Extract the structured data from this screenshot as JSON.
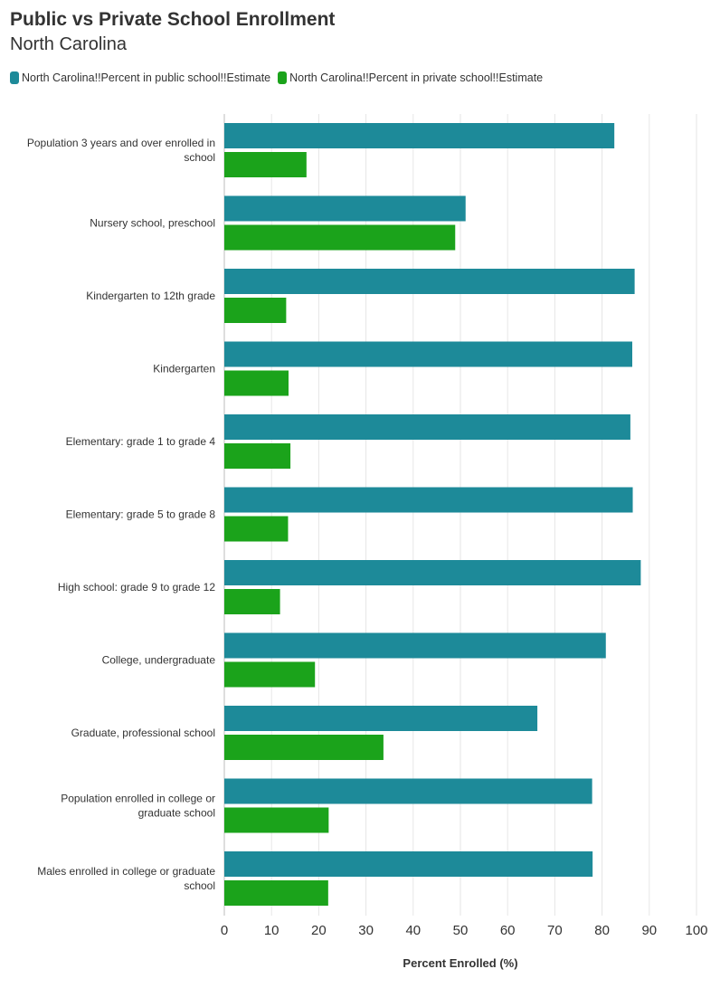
{
  "chart_data": {
    "type": "bar",
    "orientation": "horizontal",
    "title": "Public vs Private School Enrollment",
    "subtitle": "North Carolina",
    "xlabel": "Percent Enrolled (%)",
    "ylabel": "",
    "xlim": [
      0,
      100
    ],
    "xticks": [
      0,
      10,
      20,
      30,
      40,
      50,
      60,
      70,
      80,
      90,
      100
    ],
    "grid": true,
    "legend_position": "top-left",
    "categories": [
      [
        "Population 3 years and over enrolled in",
        "school"
      ],
      [
        "Nursery school, preschool"
      ],
      [
        "Kindergarten to 12th grade"
      ],
      [
        "Kindergarten"
      ],
      [
        "Elementary: grade 1 to grade 4"
      ],
      [
        "Elementary: grade 5 to grade 8"
      ],
      [
        "High school: grade 9 to grade 12"
      ],
      [
        "College, undergraduate"
      ],
      [
        "Graduate, professional school"
      ],
      [
        "Population enrolled in college or",
        "graduate school"
      ],
      [
        "Males enrolled in college or graduate",
        "school"
      ]
    ],
    "series": [
      {
        "name": "North Carolina!!Percent in public school!!Estimate",
        "color": "#1d8a99",
        "values": [
          82.6,
          51.1,
          86.9,
          86.4,
          86.0,
          86.5,
          88.2,
          80.8,
          66.3,
          77.9,
          78.0
        ]
      },
      {
        "name": "North Carolina!!Percent in private school!!Estimate",
        "color": "#1ba31b",
        "values": [
          17.4,
          48.9,
          13.1,
          13.6,
          14.0,
          13.5,
          11.8,
          19.2,
          33.7,
          22.1,
          22.0
        ]
      }
    ]
  }
}
